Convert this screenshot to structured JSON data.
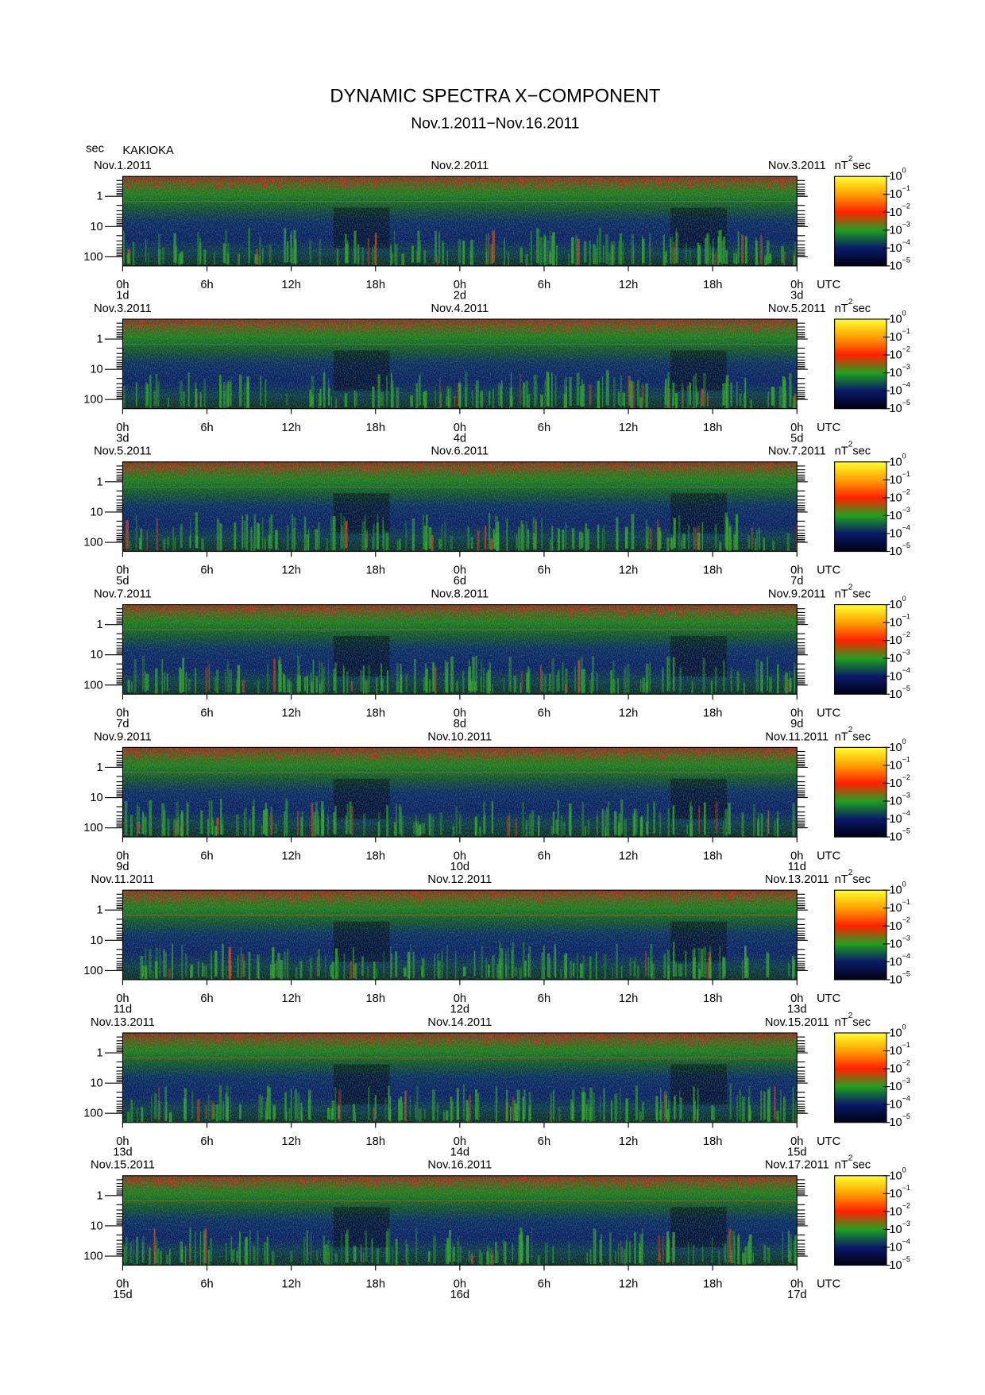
{
  "title": "DYNAMIC SPECTRA X−COMPONENT",
  "subtitle": "Nov.1.2011−Nov.16.2011",
  "station": "KAKIOKA",
  "chart_data": {
    "type": "spectrogram",
    "y_label": "sec",
    "yscale": "log",
    "ylim": [
      200,
      0.22
    ],
    "yticks": [
      1,
      10,
      100
    ],
    "yminorticks": [
      0.3,
      0.4,
      0.5,
      0.6,
      0.7,
      0.8,
      0.9,
      2,
      3,
      4,
      5,
      6,
      7,
      8,
      9,
      20,
      30,
      40,
      50,
      60,
      70,
      80,
      90
    ],
    "xlim": [
      0,
      48
    ],
    "xticks": [
      {
        "value": 0,
        "label": "0h"
      },
      {
        "value": 6,
        "label": "6h"
      },
      {
        "value": 12,
        "label": "12h"
      },
      {
        "value": 18,
        "label": "18h"
      },
      {
        "value": 24,
        "label": "0h"
      },
      {
        "value": 30,
        "label": "6h"
      },
      {
        "value": 36,
        "label": "12h"
      },
      {
        "value": 42,
        "label": "18h"
      },
      {
        "value": 48,
        "label": "0h"
      }
    ],
    "x_unit": "UTC",
    "colorbar": {
      "unit": "nT",
      "unit_exponent": "2",
      "unit_suffix": "sec",
      "clim": [
        1e-05,
        1
      ],
      "ticks": [
        {
          "value": 1,
          "label": "10",
          "exponent": "0"
        },
        {
          "value": 0.1,
          "label": "10",
          "exponent": "−1"
        },
        {
          "value": 0.01,
          "label": "10",
          "exponent": "−2"
        },
        {
          "value": 0.001,
          "label": "10",
          "exponent": "−3"
        },
        {
          "value": 0.0001,
          "label": "10",
          "exponent": "−4"
        },
        {
          "value": 1e-05,
          "label": "10",
          "exponent": "−5"
        }
      ]
    },
    "panels": [
      {
        "dates": [
          "Nov.1.2011",
          "Nov.2.2011",
          "Nov.3.2011"
        ],
        "days": [
          "1d",
          "2d",
          "3d"
        ]
      },
      {
        "dates": [
          "Nov.3.2011",
          "Nov.4.2011",
          "Nov.5.2011"
        ],
        "days": [
          "3d",
          "4d",
          "5d"
        ]
      },
      {
        "dates": [
          "Nov.5.2011",
          "Nov.6.2011",
          "Nov.7.2011"
        ],
        "days": [
          "5d",
          "6d",
          "7d"
        ]
      },
      {
        "dates": [
          "Nov.7.2011",
          "Nov.8.2011",
          "Nov.9.2011"
        ],
        "days": [
          "7d",
          "8d",
          "9d"
        ]
      },
      {
        "dates": [
          "Nov.9.2011",
          "Nov.10.2011",
          "Nov.11.2011"
        ],
        "days": [
          "9d",
          "10d",
          "11d"
        ]
      },
      {
        "dates": [
          "Nov.11.2011",
          "Nov.12.2011",
          "Nov.13.2011"
        ],
        "days": [
          "11d",
          "12d",
          "13d"
        ]
      },
      {
        "dates": [
          "Nov.13.2011",
          "Nov.14.2011",
          "Nov.15.2011"
        ],
        "days": [
          "13d",
          "14d",
          "15d"
        ]
      },
      {
        "dates": [
          "Nov.15.2011",
          "Nov.16.2011",
          "Nov.17.2011"
        ],
        "days": [
          "15d",
          "16d",
          "17d"
        ]
      }
    ]
  }
}
